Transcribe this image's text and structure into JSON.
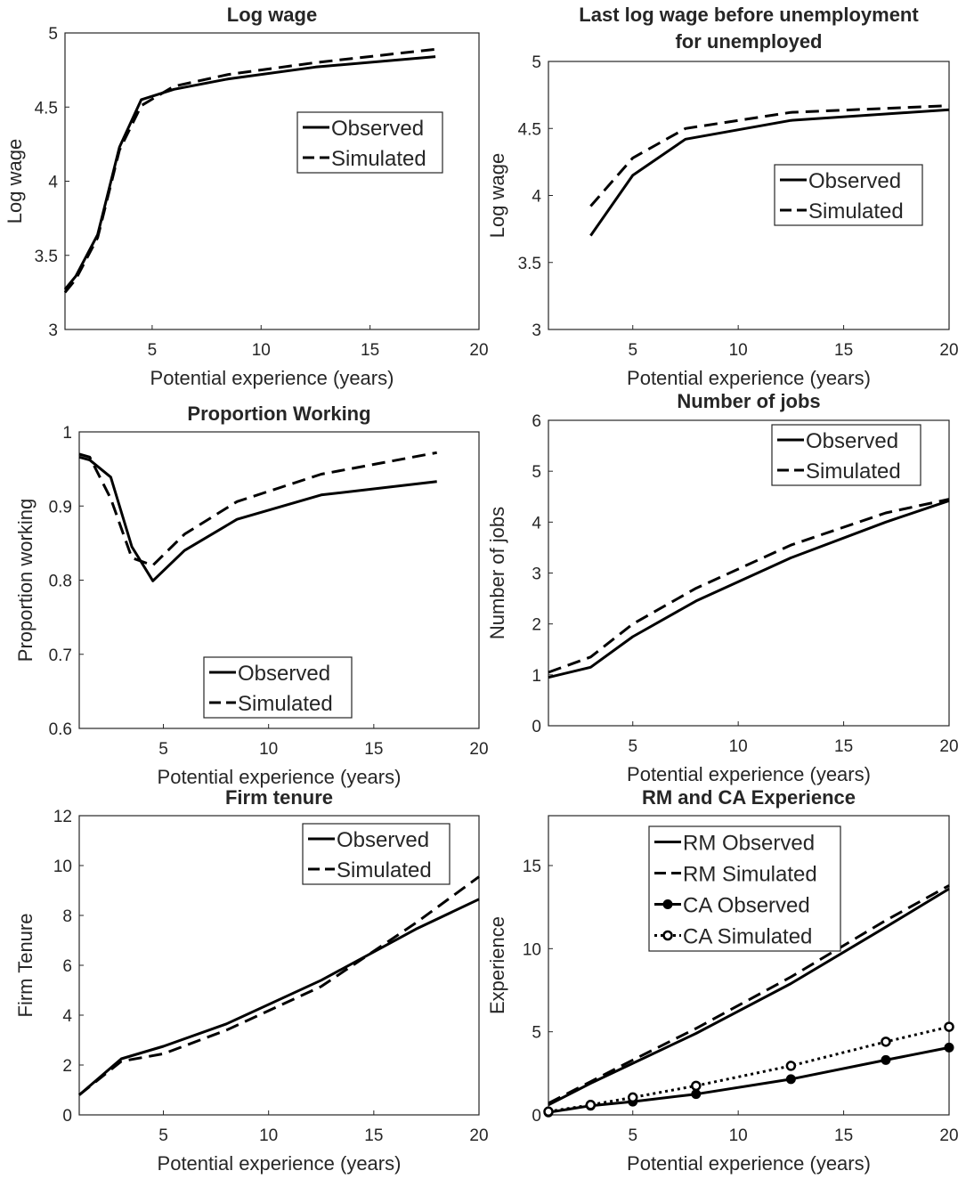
{
  "chart_data": [
    {
      "type": "line",
      "title": [
        "Log wage"
      ],
      "xlabel": "Potential experience (years)",
      "ylabel": "Log wage",
      "xlim": [
        1,
        20
      ],
      "ylim": [
        3,
        5
      ],
      "xticks": [
        5,
        10,
        15,
        20
      ],
      "yticks": [
        3,
        3.5,
        4,
        4.5,
        5
      ],
      "grid": "horizontal",
      "legend_position": "upper-right",
      "series": [
        {
          "name": "Observed",
          "style": "solid",
          "x": [
            1,
            1.5,
            2.5,
            3.5,
            4.5,
            6,
            8.5,
            12.5,
            18
          ],
          "y": [
            3.27,
            3.36,
            3.64,
            4.23,
            4.55,
            4.62,
            4.69,
            4.77,
            4.84
          ]
        },
        {
          "name": "Simulated",
          "style": "dashed",
          "x": [
            1,
            1.5,
            2.5,
            3.5,
            4.5,
            6,
            8.5,
            12.5,
            18
          ],
          "y": [
            3.25,
            3.34,
            3.62,
            4.21,
            4.51,
            4.64,
            4.72,
            4.8,
            4.89
          ]
        }
      ]
    },
    {
      "type": "line",
      "title": [
        "Last log wage before unemployment",
        "for unemployed"
      ],
      "xlabel": "Potential experience (years)",
      "ylabel": "Log wage",
      "xlim": [
        1,
        20
      ],
      "ylim": [
        3,
        5
      ],
      "xticks": [
        5,
        10,
        15,
        20
      ],
      "yticks": [
        3,
        3.5,
        4,
        4.5,
        5
      ],
      "grid": "horizontal",
      "legend_position": "right",
      "series": [
        {
          "name": "Observed",
          "style": "solid",
          "x": [
            3,
            5,
            7.5,
            12.5,
            20
          ],
          "y": [
            3.7,
            4.15,
            4.42,
            4.56,
            4.64
          ]
        },
        {
          "name": "Simulated",
          "style": "dashed",
          "x": [
            3,
            5,
            7.5,
            12.5,
            20
          ],
          "y": [
            3.92,
            4.28,
            4.5,
            4.62,
            4.67
          ]
        }
      ]
    },
    {
      "type": "line",
      "title": [
        "Proportion Working"
      ],
      "xlabel": "Potential experience (years)",
      "ylabel": "Proportion working",
      "xlim": [
        1,
        20
      ],
      "ylim": [
        0.6,
        1
      ],
      "xticks": [
        5,
        10,
        15,
        20
      ],
      "yticks": [
        0.6,
        0.7,
        0.8,
        0.9,
        1
      ],
      "grid": "horizontal",
      "legend_position": "bottom",
      "series": [
        {
          "name": "Observed",
          "style": "solid",
          "x": [
            1,
            1.5,
            2.5,
            3.5,
            4.5,
            6,
            8.5,
            12.5,
            18
          ],
          "y": [
            0.966,
            0.962,
            0.939,
            0.845,
            0.799,
            0.84,
            0.882,
            0.915,
            0.933
          ]
        },
        {
          "name": "Simulated",
          "style": "dashed",
          "x": [
            1,
            1.5,
            2.5,
            3.5,
            4.5,
            6,
            8.5,
            12.5,
            18
          ],
          "y": [
            0.97,
            0.966,
            0.91,
            0.83,
            0.82,
            0.862,
            0.906,
            0.943,
            0.972
          ]
        }
      ]
    },
    {
      "type": "line",
      "title": [
        "Number of jobs"
      ],
      "xlabel": "Potential experience (years)",
      "ylabel": "Number of jobs",
      "xlim": [
        1,
        20
      ],
      "ylim": [
        0,
        6
      ],
      "xticks": [
        5,
        10,
        15,
        20
      ],
      "yticks": [
        0,
        1,
        2,
        3,
        4,
        5,
        6
      ],
      "grid": "horizontal",
      "legend_position": "top-right",
      "series": [
        {
          "name": "Observed",
          "style": "solid",
          "x": [
            1,
            3,
            5,
            8,
            12.5,
            17,
            20
          ],
          "y": [
            0.95,
            1.15,
            1.75,
            2.45,
            3.3,
            4.0,
            4.42
          ]
        },
        {
          "name": "Simulated",
          "style": "dashed",
          "x": [
            1,
            3,
            5,
            8,
            12.5,
            17,
            20
          ],
          "y": [
            1.05,
            1.35,
            2.0,
            2.7,
            3.55,
            4.18,
            4.45
          ]
        }
      ]
    },
    {
      "type": "line",
      "title": [
        "Firm tenure"
      ],
      "xlabel": "Potential experience (years)",
      "ylabel": "Firm Tenure",
      "xlim": [
        1,
        20
      ],
      "ylim": [
        0,
        12
      ],
      "xticks": [
        5,
        10,
        15,
        20
      ],
      "yticks": [
        0,
        2,
        4,
        6,
        8,
        10,
        12
      ],
      "grid": "horizontal",
      "legend_position": "top-right",
      "series": [
        {
          "name": "Observed",
          "style": "solid",
          "x": [
            1,
            3,
            5,
            8,
            12.5,
            17,
            20
          ],
          "y": [
            0.8,
            2.25,
            2.75,
            3.65,
            5.4,
            7.45,
            8.65
          ]
        },
        {
          "name": "Simulated",
          "style": "dashed",
          "x": [
            1,
            3,
            5,
            8,
            12.5,
            17,
            20
          ],
          "y": [
            0.8,
            2.15,
            2.45,
            3.4,
            5.15,
            7.7,
            9.55
          ]
        }
      ]
    },
    {
      "type": "line",
      "title": [
        "RM and CA Experience"
      ],
      "xlabel": "Potential experience (years)",
      "ylabel": "Experience",
      "xlim": [
        1,
        20
      ],
      "ylim": [
        0,
        18
      ],
      "xticks": [
        5,
        10,
        15,
        20
      ],
      "yticks": [
        0,
        5,
        10,
        15
      ],
      "grid": "horizontal",
      "legend_position": "top-left",
      "series": [
        {
          "name": "RM Observed",
          "style": "solid",
          "x": [
            1,
            3,
            5,
            8,
            12.5,
            17,
            20
          ],
          "y": [
            0.6,
            1.9,
            3.1,
            4.9,
            7.9,
            11.3,
            13.6
          ]
        },
        {
          "name": "RM Simulated",
          "style": "dashed",
          "x": [
            1,
            3,
            5,
            8,
            12.5,
            17,
            20
          ],
          "y": [
            0.7,
            2.0,
            3.3,
            5.2,
            8.3,
            11.7,
            13.8
          ]
        },
        {
          "name": "CA Observed",
          "style": "solid-marker",
          "x": [
            1,
            3,
            5,
            8,
            12.5,
            17,
            20
          ],
          "y": [
            0.15,
            0.55,
            0.8,
            1.25,
            2.15,
            3.3,
            4.05
          ]
        },
        {
          "name": "CA Simulated",
          "style": "dotted-marker",
          "x": [
            1,
            3,
            5,
            8,
            12.5,
            17,
            20
          ],
          "y": [
            0.2,
            0.6,
            1.05,
            1.75,
            2.95,
            4.4,
            5.3
          ]
        }
      ]
    }
  ]
}
